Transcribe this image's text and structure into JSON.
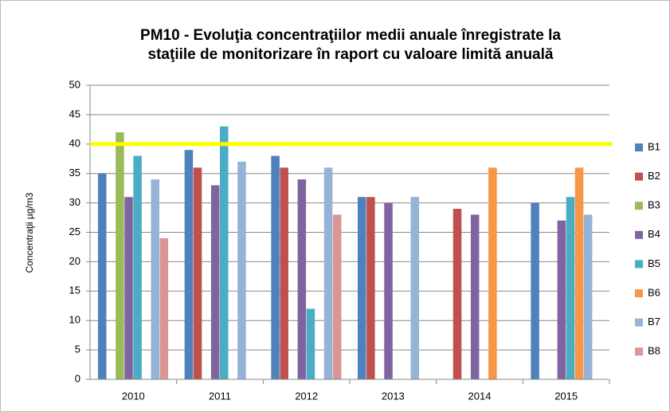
{
  "chart_data": {
    "type": "bar",
    "title": [
      "PM10 - Evoluţia concentraţiilor medii anuale înregistrate la",
      "staţiile de monitorizare în raport cu valoare limită anuală"
    ],
    "y_label": "Concentraţii µg/m3",
    "categories": [
      "2010",
      "2011",
      "2012",
      "2013",
      "2014",
      "2015"
    ],
    "series": [
      {
        "name": "B1",
        "color": "#4f81bd",
        "values": [
          35,
          39,
          38,
          31,
          null,
          30
        ]
      },
      {
        "name": "B2",
        "color": "#c0504d",
        "values": [
          null,
          36,
          36,
          31,
          29,
          null
        ]
      },
      {
        "name": "B3",
        "color": "#9bbb59",
        "values": [
          42,
          null,
          null,
          null,
          null,
          null
        ]
      },
      {
        "name": "B4",
        "color": "#8064a2",
        "values": [
          31,
          33,
          34,
          30,
          28,
          27
        ]
      },
      {
        "name": "B5",
        "color": "#4bacc6",
        "values": [
          38,
          43,
          12,
          null,
          null,
          31
        ]
      },
      {
        "name": "B6",
        "color": "#f79646",
        "values": [
          null,
          null,
          null,
          null,
          36,
          36
        ]
      },
      {
        "name": "B7",
        "color": "#95b3d7",
        "values": [
          34,
          37,
          36,
          31,
          null,
          28
        ]
      },
      {
        "name": "B8",
        "color": "#d99694",
        "values": [
          24,
          null,
          28,
          null,
          null,
          null
        ]
      }
    ],
    "limit": {
      "value": 40,
      "color": "#ffff00"
    },
    "ylim": [
      0,
      50
    ],
    "yticks": [
      0,
      5,
      10,
      15,
      20,
      25,
      30,
      35,
      40,
      45,
      50
    ],
    "grid": true,
    "legend": "right"
  }
}
